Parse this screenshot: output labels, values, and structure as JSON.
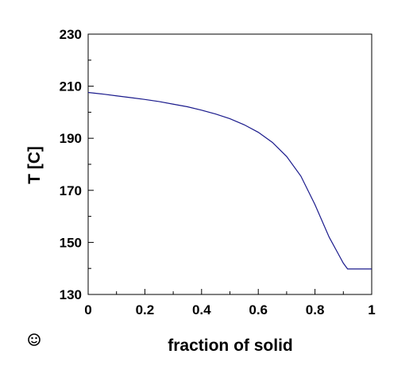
{
  "chart_data": {
    "type": "line",
    "xlabel": "fraction of solid",
    "ylabel": "T [C]",
    "xlim": [
      0,
      1
    ],
    "ylim": [
      130,
      230
    ],
    "x_ticks": [
      0,
      0.2,
      0.4,
      0.6,
      0.8,
      1
    ],
    "x_tick_labels": [
      "0",
      "0.2",
      "0.4",
      "0.6",
      "0.8",
      "1"
    ],
    "y_ticks": [
      130,
      150,
      170,
      190,
      210,
      230
    ],
    "y_tick_labels": [
      "130",
      "150",
      "170",
      "190",
      "210",
      "230"
    ],
    "grid": false,
    "series": [
      {
        "color": "#1a1a8c",
        "x": [
          0,
          0.05,
          0.1,
          0.15,
          0.2,
          0.25,
          0.3,
          0.35,
          0.4,
          0.45,
          0.5,
          0.55,
          0.6,
          0.65,
          0.7,
          0.75,
          0.8,
          0.85,
          0.88,
          0.9,
          0.915,
          0.92,
          0.95,
          1.0
        ],
        "values": [
          207.6,
          207.0,
          206.3,
          205.6,
          204.9,
          204.1,
          203.1,
          202.1,
          200.8,
          199.3,
          197.5,
          195.2,
          192.3,
          188.4,
          183.0,
          175.5,
          164.5,
          152.0,
          146.0,
          142.0,
          139.8,
          139.8,
          139.8,
          139.8
        ]
      }
    ]
  },
  "icons": {
    "bottom_left": "smiley-face-icon"
  }
}
